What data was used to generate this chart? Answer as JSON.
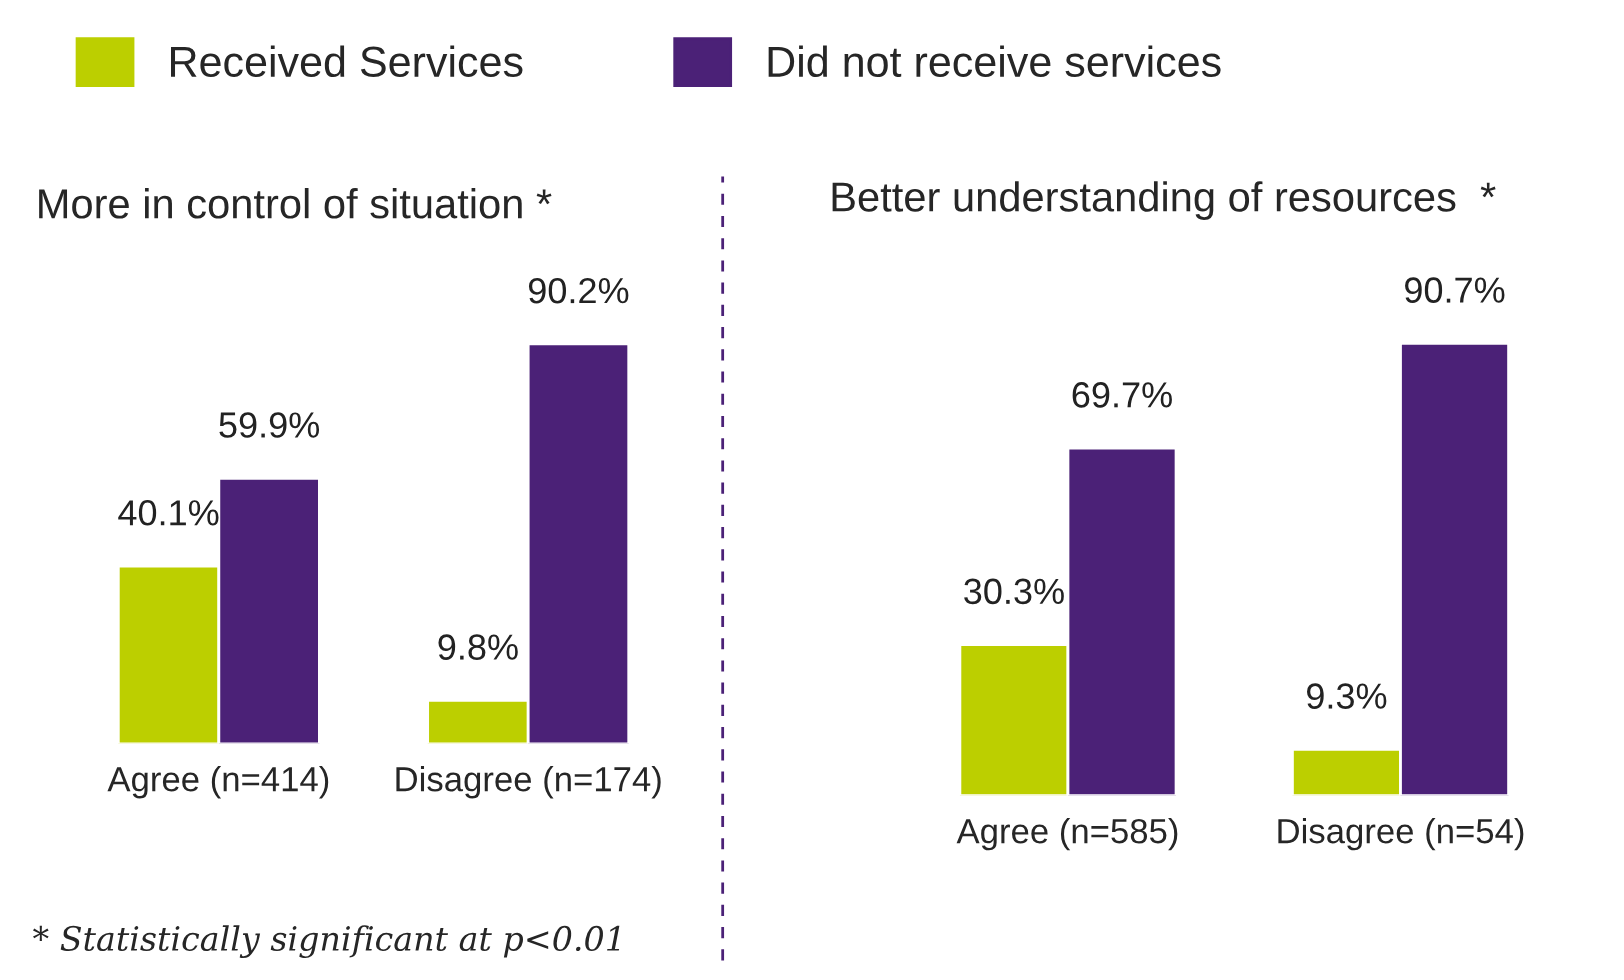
{
  "chart_data": [
    {
      "type": "bar",
      "title": "More in control of situation *",
      "categories": [
        "Agree (n=414)",
        "Disagree (n=174)"
      ],
      "series": [
        {
          "name": "Received Services",
          "color": "#bccf00",
          "values": [
            40.1,
            9.8
          ],
          "value_labels": [
            "40.1%",
            "9.8%"
          ]
        },
        {
          "name": "Did not receive services",
          "color": "#4b2177",
          "values": [
            59.9,
            90.2
          ],
          "value_labels": [
            "59.9%",
            "90.2%"
          ]
        }
      ],
      "legend": "top",
      "tick_labels": "x",
      "annotations": [
        "* Statistically significant at p<0.01"
      ]
    },
    {
      "type": "bar",
      "title": "Better understanding of resources  *",
      "categories": [
        "Agree (n=585)",
        "Disagree (n=54)"
      ],
      "series": [
        {
          "color": "#bccf00",
          "values": [
            30.3,
            9.3
          ],
          "value_labels": [
            "30.3%",
            "9.3%"
          ]
        },
        {
          "color": "#4b2177",
          "values": [
            69.7,
            90.7
          ],
          "value_labels": [
            "69.7%",
            "90.7%"
          ]
        }
      ],
      "tick_labels": "x"
    }
  ]
}
